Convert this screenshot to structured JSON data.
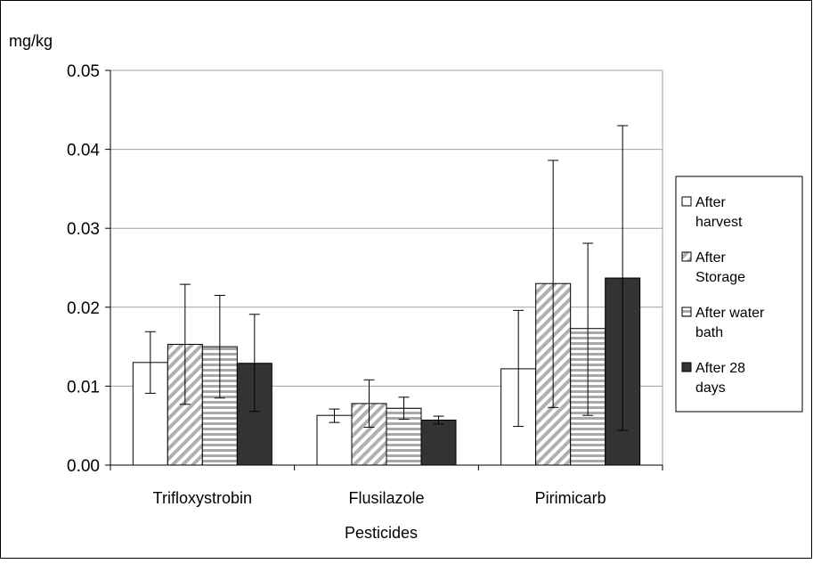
{
  "chart_data": {
    "type": "bar",
    "ylabel": "mg/kg",
    "xlabel": "Pesticides",
    "ylim": [
      0,
      0.05
    ],
    "yticks": [
      "0.00",
      "0.01",
      "0.02",
      "0.03",
      "0.04",
      "0.05"
    ],
    "ytick_values": [
      0,
      0.01,
      0.02,
      0.03,
      0.04,
      0.05
    ],
    "grid": true,
    "legend_position": "right",
    "categories": [
      "Trifloxystrobin",
      "Flusilazole",
      "Pirimicarb"
    ],
    "series": [
      {
        "name": "After harvest",
        "legend_lines": [
          "After",
          "harvest"
        ],
        "pattern": "white",
        "values": [
          0.013,
          0.0063,
          0.0122
        ],
        "err_low": [
          0.0091,
          0.0054,
          0.0049
        ],
        "err_high": [
          0.0169,
          0.0071,
          0.0196
        ]
      },
      {
        "name": "After Storage",
        "legend_lines": [
          "After",
          "Storage"
        ],
        "pattern": "diagonal",
        "values": [
          0.0153,
          0.0078,
          0.023
        ],
        "err_low": [
          0.0077,
          0.0048,
          0.0073
        ],
        "err_high": [
          0.0229,
          0.0108,
          0.0386
        ]
      },
      {
        "name": "After water bath",
        "legend_lines": [
          "After water",
          "bath"
        ],
        "pattern": "horizontal",
        "values": [
          0.015,
          0.0072,
          0.0173
        ],
        "err_low": [
          0.0085,
          0.0058,
          0.0063
        ],
        "err_high": [
          0.0215,
          0.0086,
          0.0281
        ]
      },
      {
        "name": "After 28 days",
        "legend_lines": [
          "After 28",
          "days"
        ],
        "pattern": "dark",
        "values": [
          0.0129,
          0.0057,
          0.0237
        ],
        "err_low": [
          0.0068,
          0.0052,
          0.0044
        ],
        "err_high": [
          0.0191,
          0.0062,
          0.043
        ]
      }
    ],
    "colors": {
      "dark": "#333333",
      "stripe": "#b0b0b0",
      "grid": "#a0a0a0"
    }
  }
}
